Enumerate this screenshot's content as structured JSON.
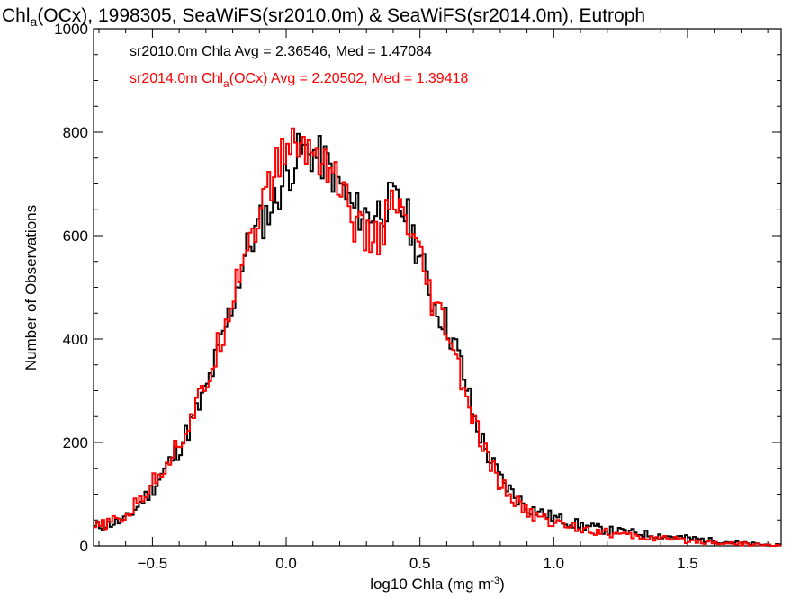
{
  "chart_data": {
    "type": "histogram",
    "title_main": "Chl",
    "title_sub": "a",
    "title_rest": "(OCx), 1998305, SeaWiFS(sr2010.0m) & SeaWiFS(sr2014.0m), Eutroph",
    "xlabel_prefix": "log10 Chla (mg m",
    "xlabel_sup": "-3",
    "xlabel_suffix": ")",
    "ylabel": "Number of Observations",
    "xlim": [
      -0.72,
      1.85
    ],
    "ylim": [
      0,
      1000
    ],
    "xticks": [
      -0.5,
      0.0,
      0.5,
      1.0,
      1.5
    ],
    "xtick_labels": [
      "−0.5",
      "0.0",
      "0.5",
      "1.0",
      "1.5"
    ],
    "yticks": [
      0,
      200,
      400,
      600,
      800,
      1000
    ],
    "ytick_labels": [
      "0",
      "200",
      "400",
      "600",
      "800",
      "1000"
    ],
    "legend": [
      {
        "text": "sr2010.0m Chla Avg = 2.36546, Med = 1.47084",
        "color": "#000000"
      },
      {
        "prefix": "sr2014.0m Chl",
        "sub": "a",
        "suffix": "(OCx) Avg = 2.20502, Med = 1.39418",
        "color": "#ff0000"
      }
    ],
    "series": [
      {
        "name": "sr2010.0m",
        "color": "#000000",
        "points": [
          [
            -0.72,
            35
          ],
          [
            -0.6,
            50
          ],
          [
            -0.5,
            110
          ],
          [
            -0.4,
            190
          ],
          [
            -0.35,
            240
          ],
          [
            -0.3,
            300
          ],
          [
            -0.25,
            380
          ],
          [
            -0.2,
            470
          ],
          [
            -0.15,
            570
          ],
          [
            -0.1,
            620
          ],
          [
            -0.05,
            660
          ],
          [
            0.0,
            715
          ],
          [
            0.05,
            760
          ],
          [
            0.1,
            760
          ],
          [
            0.15,
            740
          ],
          [
            0.2,
            700
          ],
          [
            0.25,
            650
          ],
          [
            0.3,
            640
          ],
          [
            0.35,
            650
          ],
          [
            0.4,
            670
          ],
          [
            0.45,
            640
          ],
          [
            0.5,
            560
          ],
          [
            0.55,
            470
          ],
          [
            0.6,
            430
          ],
          [
            0.65,
            360
          ],
          [
            0.7,
            250
          ],
          [
            0.75,
            180
          ],
          [
            0.8,
            130
          ],
          [
            0.85,
            100
          ],
          [
            0.9,
            75
          ],
          [
            0.95,
            65
          ],
          [
            1.0,
            55
          ],
          [
            1.1,
            40
          ],
          [
            1.2,
            30
          ],
          [
            1.3,
            25
          ],
          [
            1.4,
            20
          ],
          [
            1.5,
            15
          ],
          [
            1.6,
            10
          ],
          [
            1.7,
            5
          ],
          [
            1.8,
            2
          ],
          [
            1.85,
            0
          ]
        ]
      },
      {
        "name": "sr2014.0m",
        "color": "#ff0000",
        "points": [
          [
            -0.72,
            35
          ],
          [
            -0.6,
            55
          ],
          [
            -0.5,
            120
          ],
          [
            -0.4,
            200
          ],
          [
            -0.35,
            250
          ],
          [
            -0.3,
            310
          ],
          [
            -0.25,
            390
          ],
          [
            -0.2,
            490
          ],
          [
            -0.15,
            580
          ],
          [
            -0.1,
            640
          ],
          [
            -0.05,
            710
          ],
          [
            0.0,
            775
          ],
          [
            0.05,
            770
          ],
          [
            0.1,
            765
          ],
          [
            0.15,
            745
          ],
          [
            0.2,
            700
          ],
          [
            0.25,
            630
          ],
          [
            0.3,
            590
          ],
          [
            0.35,
            600
          ],
          [
            0.4,
            660
          ],
          [
            0.45,
            620
          ],
          [
            0.5,
            550
          ],
          [
            0.55,
            460
          ],
          [
            0.6,
            420
          ],
          [
            0.65,
            330
          ],
          [
            0.7,
            240
          ],
          [
            0.75,
            170
          ],
          [
            0.8,
            120
          ],
          [
            0.85,
            90
          ],
          [
            0.9,
            65
          ],
          [
            0.95,
            55
          ],
          [
            1.0,
            45
          ],
          [
            1.1,
            35
          ],
          [
            1.2,
            25
          ],
          [
            1.3,
            18
          ],
          [
            1.4,
            14
          ],
          [
            1.5,
            10
          ],
          [
            1.6,
            7
          ],
          [
            1.7,
            4
          ],
          [
            1.8,
            1
          ],
          [
            1.85,
            0
          ]
        ]
      }
    ]
  }
}
